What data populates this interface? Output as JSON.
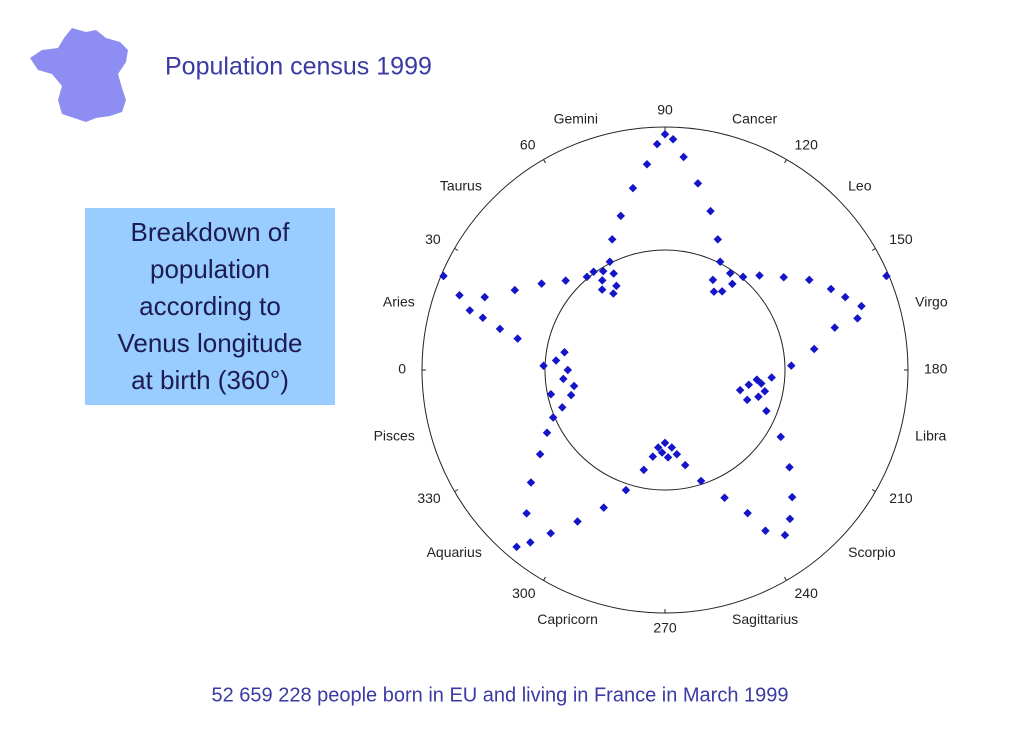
{
  "header": {
    "title": "Population census 1999"
  },
  "callout": {
    "lines": [
      "Breakdown of",
      "population",
      "according to",
      "Venus longitude",
      "at birth (360°)"
    ]
  },
  "footer": "52 659 228 people born in EU and living in France in March 1999",
  "chart_data": {
    "type": "scatter",
    "polar": true,
    "theta_zero": "left",
    "theta_direction": "clockwise",
    "thetalim": [
      0,
      360
    ],
    "thetaticks": [
      0,
      30,
      60,
      90,
      120,
      150,
      180,
      210,
      240,
      270,
      300,
      330
    ],
    "rlim": [
      0,
      1
    ],
    "categories": [
      "Aries",
      "Taurus",
      "Gemini",
      "Cancer",
      "Leo",
      "Virgo",
      "Libra",
      "Scorpio",
      "Sagittarius",
      "Capricorn",
      "Aquarius",
      "Pisces"
    ],
    "series": [
      {
        "color": "#1414c8",
        "theta": [
          340,
          345,
          350,
          355,
          0,
          5,
          10,
          348,
          2,
          12,
          14,
          16,
          17,
          20,
          23,
          22,
          28,
          35,
          42,
          50,
          55,
          52,
          56,
          60,
          62,
          58,
          54,
          63,
          68,
          74,
          80,
          85,
          88,
          90,
          92,
          95,
          100,
          106,
          112,
          117,
          118,
          122,
          126,
          128,
          124,
          130,
          135,
          142,
          148,
          154,
          158,
          162,
          165,
          157,
          166,
          172,
          178,
          184,
          188,
          190,
          195,
          200,
          196,
          192,
          186,
          202,
          210,
          218,
          225,
          230,
          234,
          238,
          240,
          245,
          252,
          258,
          262,
          265,
          270,
          275,
          268,
          272,
          278,
          282,
          288,
          294,
          300,
          305,
          308,
          310,
          314,
          320,
          326,
          332,
          337
        ],
        "r": [
          0.45,
          0.4,
          0.38,
          0.42,
          0.4,
          0.45,
          0.42,
          0.48,
          0.5,
          0.62,
          0.7,
          0.78,
          0.84,
          0.9,
          0.99,
          0.8,
          0.7,
          0.62,
          0.55,
          0.5,
          0.45,
          0.42,
          0.38,
          0.4,
          0.45,
          0.48,
          0.5,
          0.5,
          0.58,
          0.66,
          0.76,
          0.85,
          0.93,
          0.97,
          0.95,
          0.88,
          0.78,
          0.68,
          0.58,
          0.5,
          0.42,
          0.38,
          0.4,
          0.45,
          0.48,
          0.5,
          0.55,
          0.62,
          0.7,
          0.76,
          0.8,
          0.85,
          0.82,
          0.99,
          0.72,
          0.62,
          0.52,
          0.44,
          0.4,
          0.35,
          0.32,
          0.36,
          0.4,
          0.42,
          0.38,
          0.45,
          0.55,
          0.65,
          0.74,
          0.8,
          0.84,
          0.78,
          0.68,
          0.58,
          0.48,
          0.4,
          0.35,
          0.32,
          0.3,
          0.32,
          0.36,
          0.34,
          0.36,
          0.42,
          0.52,
          0.62,
          0.72,
          0.82,
          0.9,
          0.95,
          0.82,
          0.72,
          0.62,
          0.55,
          0.5
        ]
      }
    ]
  }
}
